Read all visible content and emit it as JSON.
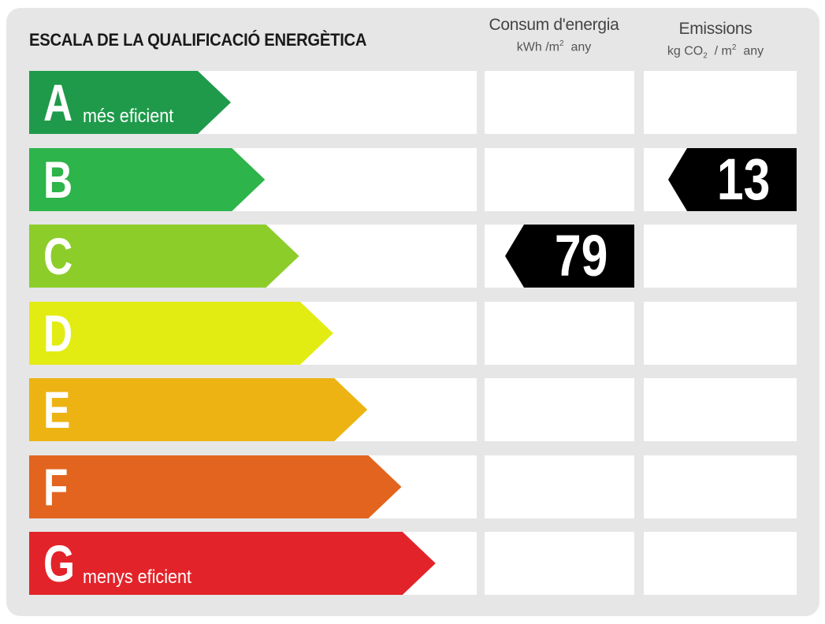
{
  "header": {
    "title": "ESCALA DE LA QUALIFICACIÓ ENERGÈTICA",
    "consumption": {
      "title": "Consum d'energia",
      "unit_pre": "kWh /m",
      "unit_sup": "2",
      "unit_post": "  any"
    },
    "emissions": {
      "title": "Emissions",
      "unit_pre": "kg CO",
      "unit_sub": "2",
      "unit_mid": "  / m",
      "unit_sup": "2",
      "unit_post": "  any"
    }
  },
  "ratings": [
    {
      "letter": "A",
      "label": "més eficient",
      "color": "#1f9a4b"
    },
    {
      "letter": "B",
      "label": "",
      "color": "#2db44a"
    },
    {
      "letter": "C",
      "label": "",
      "color": "#8ccd2a"
    },
    {
      "letter": "D",
      "label": "",
      "color": "#e3ec12"
    },
    {
      "letter": "E",
      "label": "",
      "color": "#ecb312"
    },
    {
      "letter": "F",
      "label": "",
      "color": "#e2641e"
    },
    {
      "letter": "G",
      "label": "menys eficient",
      "color": "#e3232a"
    }
  ],
  "consumption_value": {
    "rating": "C",
    "value": "79",
    "color": "#000000"
  },
  "emissions_value": {
    "rating": "B",
    "value": "13",
    "color": "#000000"
  }
}
